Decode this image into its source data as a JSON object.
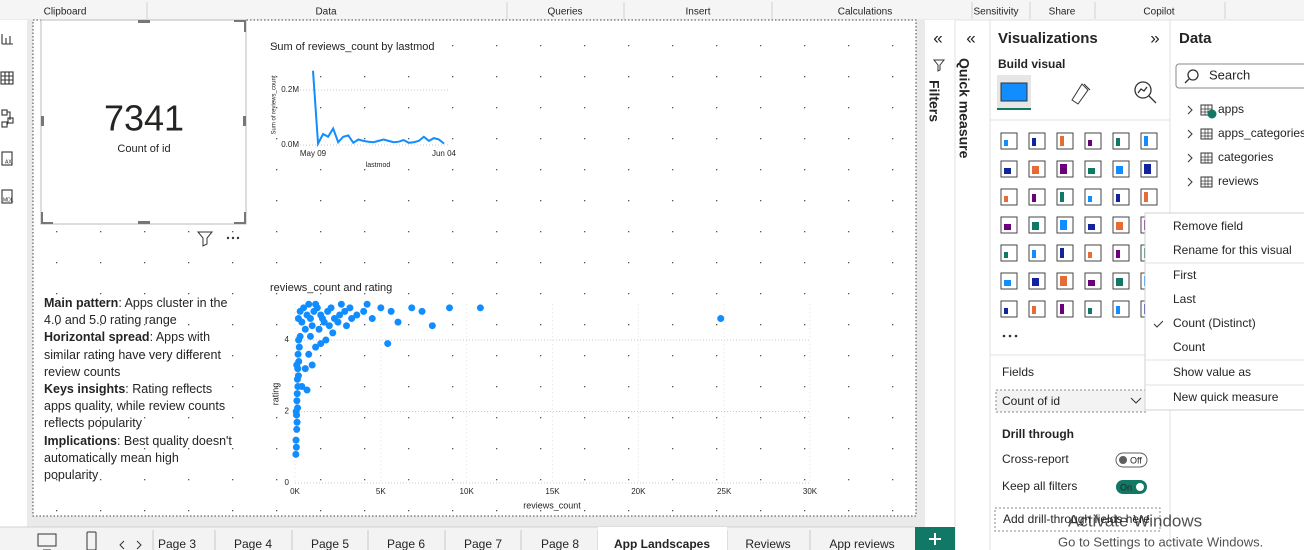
{
  "ribbon_groups": [
    "Clipboard",
    "Data",
    "Queries",
    "Insert",
    "Calculations",
    "Sensitivity",
    "Share",
    "Copilot"
  ],
  "card": {
    "value": 7341,
    "label": "Count of id"
  },
  "chart_data": [
    {
      "type": "line",
      "title": "Sum of reviews_count by lastmod",
      "x_label": "lastmod",
      "y_label": "Sum of reviews_count",
      "color": "#118dff",
      "categories": [
        "May 09",
        null,
        null,
        null,
        null,
        null,
        null,
        null,
        null,
        null,
        null,
        null,
        null,
        null,
        null,
        null,
        null,
        null,
        null,
        null,
        null,
        null,
        null,
        null,
        null,
        null,
        "Jun 04"
      ],
      "values": [
        270000,
        5000,
        40000,
        30000,
        60000,
        10000,
        30000,
        35000,
        8000,
        20000,
        15000,
        12000,
        10000,
        15000,
        20000,
        15000,
        10000,
        12000,
        18000,
        8000,
        10000,
        15000,
        30000,
        15000,
        25000,
        20000,
        5000
      ],
      "ylim": [
        0,
        280000
      ],
      "yticks": [
        {
          "value": 0,
          "label": "0.0M"
        },
        {
          "value": 200000,
          "label": "0.2M"
        }
      ],
      "grid": true
    },
    {
      "type": "scatter",
      "title": "reviews_count and rating",
      "x_label": "reviews_count",
      "y_label": "rating",
      "color": "#118dff",
      "x": [
        50,
        80,
        60,
        100,
        120,
        90,
        150,
        110,
        130,
        170,
        140,
        200,
        160,
        220,
        180,
        250,
        210,
        300,
        100,
        70,
        800,
        600,
        1200,
        400,
        900,
        1500,
        1000,
        700,
        2200,
        1800,
        5400,
        300,
        500,
        700,
        900,
        1100,
        1300,
        1500,
        1700,
        1900,
        2100,
        2300,
        2600,
        2900,
        3200,
        3600,
        4000,
        4500,
        5000,
        5600,
        6000,
        6800,
        7400,
        8000,
        9000,
        10800,
        400,
        600,
        1000,
        1400,
        1600,
        2000,
        2500,
        3000,
        3300,
        24800,
        200,
        800,
        1200,
        2700,
        4200
      ],
      "values": [
        0.8,
        1.0,
        1.2,
        1.5,
        1.7,
        1.9,
        2.1,
        2.3,
        2.5,
        2.7,
        2.9,
        3.0,
        3.2,
        3.4,
        3.6,
        3.8,
        4.0,
        4.1,
        3.3,
        2.0,
        3.6,
        3.2,
        3.8,
        2.7,
        4.1,
        3.9,
        3.3,
        2.6,
        4.2,
        4.0,
        3.9,
        4.8,
        4.9,
        4.7,
        4.6,
        4.8,
        4.9,
        4.7,
        4.5,
        4.8,
        4.9,
        4.6,
        4.7,
        4.8,
        4.9,
        4.7,
        4.8,
        4.6,
        4.9,
        4.8,
        4.5,
        4.9,
        4.8,
        4.4,
        4.9,
        4.9,
        4.5,
        4.3,
        4.4,
        4.3,
        4.6,
        4.4,
        4.5,
        4.4,
        4.6,
        4.6,
        4.6,
        5.0,
        5.0,
        5.0,
        5.0
      ],
      "xlim": [
        0,
        30000
      ],
      "xticks": [
        {
          "value": 0,
          "label": "0K"
        },
        {
          "value": 5000,
          "label": "5K"
        },
        {
          "value": 10000,
          "label": "10K"
        },
        {
          "value": 15000,
          "label": "15K"
        },
        {
          "value": 20000,
          "label": "20K"
        },
        {
          "value": 25000,
          "label": "25K"
        },
        {
          "value": 30000,
          "label": "30K"
        }
      ],
      "ylim": [
        0,
        5
      ],
      "yticks": [
        0,
        2,
        4
      ],
      "grid": true
    }
  ],
  "text_box": {
    "paragraphs": [
      {
        "bold": "Main pattern",
        "text": ": Apps cluster in the 4.0 and 5.0  rating range"
      },
      {
        "bold": "Horizontal spread",
        "text": ": Apps with similar rating have very different review counts"
      },
      {
        "bold": "Keys insights",
        "text": ": Rating reflects apps quality, while review counts reflects popularity"
      },
      {
        "bold": "Implications",
        "text": ": Best quality doesn't automatically mean high popularity"
      }
    ]
  },
  "panes": {
    "filters": "Filters",
    "quick_measure": "Quick measure"
  },
  "visualizations": {
    "title": "Visualizations",
    "build_visual": "Build visual",
    "fields_label": "Fields",
    "field": "Count of id",
    "drill_through": "Drill through",
    "cross_report": "Cross-report",
    "cross_report_state": "Off",
    "keep_all_filters": "Keep all filters",
    "keep_all_filters_state": "On",
    "drop_zone": "Add drill-through fields here"
  },
  "context_menu": {
    "items": [
      "Remove field",
      "Rename for this visual",
      "First",
      "Last",
      "Count (Distinct)",
      "Count",
      "Show value as",
      "New quick measure"
    ],
    "checked_item": 4
  },
  "data_pane": {
    "title": "Data",
    "search": "Search",
    "tables": [
      "apps",
      "apps_categories",
      "categories",
      "reviews"
    ]
  },
  "tabs": [
    "Page 3",
    "Page 4",
    "Page 5",
    "Page 6",
    "Page 7",
    "Page 8",
    "App Landscapes",
    "Reviews",
    "App reviews"
  ],
  "active_tab": 6,
  "watermark": {
    "title": "Activate Windows",
    "text": "Go to Settings to activate Windows."
  }
}
